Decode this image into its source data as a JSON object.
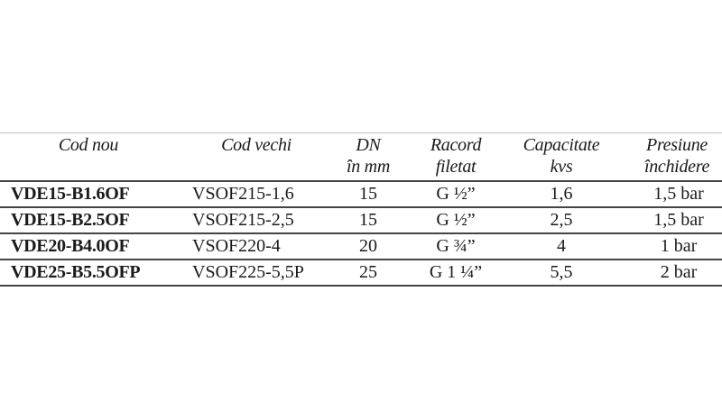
{
  "table": {
    "headers": [
      [
        "Cod nou",
        ""
      ],
      [
        "Cod vechi",
        ""
      ],
      [
        "DN",
        "în mm"
      ],
      [
        "Racord",
        "filetat"
      ],
      [
        "Capacitate",
        "kvs"
      ],
      [
        "Presiune",
        "închidere"
      ]
    ],
    "rows": [
      [
        "VDE15-B1.6OF",
        "VSOF215-1,6",
        "15",
        "G ½”",
        "1,6",
        "1,5 bar"
      ],
      [
        "VDE15-B2.5OF",
        "VSOF215-2,5",
        "15",
        "G ½”",
        "2,5",
        "1,5 bar"
      ],
      [
        "VDE20-B4.0OF",
        "VSOF220-4",
        "20",
        "G ¾”",
        "4",
        "1 bar"
      ],
      [
        "VDE25-B5.5OFP",
        "VSOF225-5,5P",
        "25",
        "G 1 ¼”",
        "5,5",
        "2 bar"
      ]
    ]
  }
}
